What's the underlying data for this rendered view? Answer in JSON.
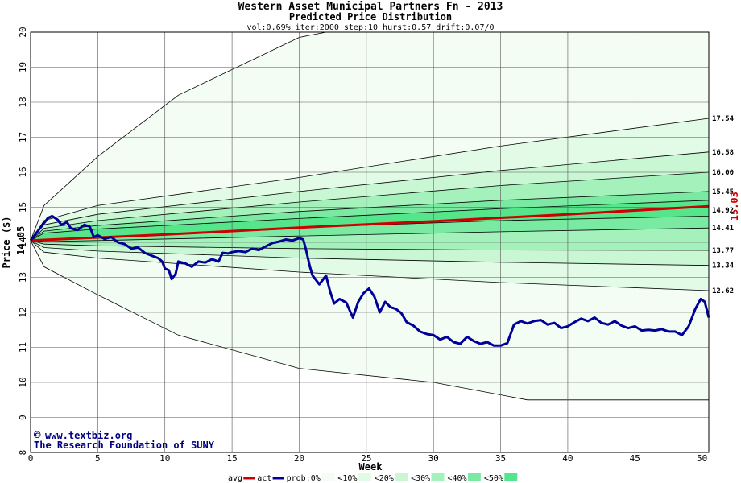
{
  "chart_data": {
    "type": "area",
    "title": "Western Asset Municipal Partners Fn - 2013",
    "subtitle": "Predicted Price Distribution",
    "params": "vol:0.69% iter:2000 step:10 hurst:0.57 drift:0.07/0",
    "xlabel": "Week",
    "ylabel": "Price ($)",
    "xlim": [
      0,
      50.5
    ],
    "ylim": [
      8,
      20
    ],
    "x_ticks": [
      0,
      5,
      10,
      15,
      20,
      25,
      30,
      35,
      40,
      45,
      50
    ],
    "y_ticks": [
      8,
      9,
      10,
      11,
      12,
      13,
      14,
      15,
      16,
      17,
      18,
      19,
      20
    ],
    "grid": true,
    "start_price_label": "14.05",
    "start_price": 14.05,
    "end_avg_label": "15.03",
    "end_avg": 15.03,
    "percentile_labels": [
      "17.54",
      "16.58",
      "16.00",
      "15.45",
      "14.92",
      "14.41",
      "13.77",
      "13.34",
      "12.62"
    ],
    "bands": [
      {
        "name": "0%",
        "upper": [
          [
            0,
            14.05
          ],
          [
            1,
            15.05
          ],
          [
            5,
            16.45
          ],
          [
            11,
            18.2
          ],
          [
            20,
            19.85
          ],
          [
            22,
            20.0
          ],
          [
            50.5,
            20.0
          ]
        ],
        "lower": [
          [
            0,
            14.05
          ],
          [
            1,
            13.3
          ],
          [
            5,
            12.5
          ],
          [
            11,
            11.35
          ],
          [
            20,
            10.4
          ],
          [
            30,
            10.0
          ],
          [
            37,
            9.5
          ],
          [
            50.5,
            9.5
          ]
        ],
        "color": "#f4fdf4"
      },
      {
        "name": "10%",
        "upper": [
          [
            0,
            14.05
          ],
          [
            1,
            14.62
          ],
          [
            5,
            15.05
          ],
          [
            20,
            15.85
          ],
          [
            35,
            16.75
          ],
          [
            50.5,
            17.54
          ]
        ],
        "lower": [
          [
            0,
            14.05
          ],
          [
            1,
            13.72
          ],
          [
            5,
            13.55
          ],
          [
            20,
            13.15
          ],
          [
            35,
            12.85
          ],
          [
            50.5,
            12.62
          ]
        ],
        "color": "#e2fbe6"
      },
      {
        "name": "20%",
        "upper": [
          [
            0,
            14.05
          ],
          [
            1,
            14.5
          ],
          [
            5,
            14.8
          ],
          [
            20,
            15.45
          ],
          [
            35,
            16.05
          ],
          [
            50.5,
            16.58
          ]
        ],
        "lower": [
          [
            0,
            14.05
          ],
          [
            1,
            13.85
          ],
          [
            5,
            13.75
          ],
          [
            20,
            13.55
          ],
          [
            35,
            13.43
          ],
          [
            50.5,
            13.34
          ]
        ],
        "color": "#c9f7d4"
      },
      {
        "name": "30%",
        "upper": [
          [
            0,
            14.05
          ],
          [
            1,
            14.4
          ],
          [
            5,
            14.62
          ],
          [
            20,
            15.15
          ],
          [
            35,
            15.62
          ],
          [
            50.5,
            16.0
          ]
        ],
        "lower": [
          [
            0,
            14.05
          ],
          [
            1,
            13.95
          ],
          [
            5,
            13.9
          ],
          [
            20,
            13.82
          ],
          [
            35,
            13.78
          ],
          [
            50.5,
            13.77
          ]
        ],
        "color": "#a4f1bc"
      },
      {
        "name": "40%",
        "upper": [
          [
            0,
            14.05
          ],
          [
            1,
            14.32
          ],
          [
            5,
            14.48
          ],
          [
            20,
            14.88
          ],
          [
            35,
            15.2
          ],
          [
            50.5,
            15.45
          ]
        ],
        "lower": [
          [
            0,
            14.05
          ],
          [
            1,
            14.02
          ],
          [
            5,
            14.05
          ],
          [
            20,
            14.18
          ],
          [
            35,
            14.3
          ],
          [
            50.5,
            14.41
          ]
        ],
        "color": "#7aeaa2"
      },
      {
        "name": "50%",
        "upper": [
          [
            0,
            14.05
          ],
          [
            1,
            14.26
          ],
          [
            5,
            14.38
          ],
          [
            20,
            14.68
          ],
          [
            35,
            14.96
          ],
          [
            50.5,
            15.2
          ]
        ],
        "lower": [
          [
            0,
            14.05
          ],
          [
            1,
            14.08
          ],
          [
            5,
            14.15
          ],
          [
            20,
            14.42
          ],
          [
            35,
            14.62
          ],
          [
            50.5,
            14.75
          ]
        ],
        "color": "#55e58a"
      }
    ],
    "avg": [
      [
        0,
        14.05
      ],
      [
        10,
        14.22
      ],
      [
        20,
        14.42
      ],
      [
        30,
        14.6
      ],
      [
        40,
        14.8
      ],
      [
        50.5,
        15.03
      ]
    ],
    "act": [
      [
        0,
        14.05
      ],
      [
        0.5,
        14.3
      ],
      [
        1,
        14.55
      ],
      [
        1.3,
        14.7
      ],
      [
        1.6,
        14.75
      ],
      [
        2,
        14.65
      ],
      [
        2.3,
        14.5
      ],
      [
        2.7,
        14.58
      ],
      [
        3,
        14.4
      ],
      [
        3.5,
        14.35
      ],
      [
        4,
        14.5
      ],
      [
        4.4,
        14.45
      ],
      [
        4.7,
        14.15
      ],
      [
        5,
        14.2
      ],
      [
        5.5,
        14.1
      ],
      [
        6,
        14.15
      ],
      [
        6.5,
        14.0
      ],
      [
        7,
        13.95
      ],
      [
        7.5,
        13.82
      ],
      [
        8,
        13.85
      ],
      [
        8.5,
        13.7
      ],
      [
        9,
        13.62
      ],
      [
        9.5,
        13.55
      ],
      [
        9.8,
        13.45
      ],
      [
        10,
        13.25
      ],
      [
        10.3,
        13.2
      ],
      [
        10.5,
        12.95
      ],
      [
        10.8,
        13.1
      ],
      [
        11,
        13.45
      ],
      [
        11.5,
        13.4
      ],
      [
        12,
        13.3
      ],
      [
        12.5,
        13.45
      ],
      [
        13,
        13.42
      ],
      [
        13.5,
        13.52
      ],
      [
        14,
        13.45
      ],
      [
        14.3,
        13.7
      ],
      [
        14.7,
        13.68
      ],
      [
        15,
        13.72
      ],
      [
        15.5,
        13.75
      ],
      [
        16,
        13.72
      ],
      [
        16.5,
        13.82
      ],
      [
        17,
        13.78
      ],
      [
        17.5,
        13.88
      ],
      [
        18,
        13.98
      ],
      [
        18.5,
        14.02
      ],
      [
        19,
        14.08
      ],
      [
        19.5,
        14.05
      ],
      [
        20,
        14.12
      ],
      [
        20.3,
        14.08
      ],
      [
        20.5,
        13.8
      ],
      [
        20.8,
        13.3
      ],
      [
        21,
        13.05
      ],
      [
        21.5,
        12.8
      ],
      [
        22,
        13.05
      ],
      [
        22.3,
        12.6
      ],
      [
        22.6,
        12.25
      ],
      [
        23,
        12.38
      ],
      [
        23.5,
        12.28
      ],
      [
        24,
        11.85
      ],
      [
        24.4,
        12.3
      ],
      [
        24.8,
        12.55
      ],
      [
        25.2,
        12.68
      ],
      [
        25.6,
        12.45
      ],
      [
        26,
        12.0
      ],
      [
        26.4,
        12.3
      ],
      [
        26.8,
        12.15
      ],
      [
        27.2,
        12.1
      ],
      [
        27.6,
        11.98
      ],
      [
        28,
        11.72
      ],
      [
        28.5,
        11.62
      ],
      [
        29,
        11.45
      ],
      [
        29.5,
        11.38
      ],
      [
        30,
        11.35
      ],
      [
        30.5,
        11.22
      ],
      [
        31,
        11.3
      ],
      [
        31.5,
        11.15
      ],
      [
        32,
        11.1
      ],
      [
        32.5,
        11.3
      ],
      [
        33,
        11.18
      ],
      [
        33.5,
        11.1
      ],
      [
        34,
        11.15
      ],
      [
        34.5,
        11.05
      ],
      [
        35,
        11.05
      ],
      [
        35.5,
        11.12
      ],
      [
        36,
        11.65
      ],
      [
        36.5,
        11.75
      ],
      [
        37,
        11.68
      ],
      [
        37.5,
        11.75
      ],
      [
        38,
        11.78
      ],
      [
        38.5,
        11.65
      ],
      [
        39,
        11.7
      ],
      [
        39.5,
        11.55
      ],
      [
        40,
        11.6
      ],
      [
        40.5,
        11.72
      ],
      [
        41,
        11.82
      ],
      [
        41.5,
        11.75
      ],
      [
        42,
        11.85
      ],
      [
        42.5,
        11.7
      ],
      [
        43,
        11.65
      ],
      [
        43.5,
        11.75
      ],
      [
        44,
        11.62
      ],
      [
        44.5,
        11.55
      ],
      [
        45,
        11.6
      ],
      [
        45.5,
        11.48
      ],
      [
        46,
        11.5
      ],
      [
        46.5,
        11.48
      ],
      [
        47,
        11.52
      ],
      [
        47.5,
        11.45
      ],
      [
        48,
        11.45
      ],
      [
        48.5,
        11.35
      ],
      [
        49,
        11.6
      ],
      [
        49.5,
        12.1
      ],
      [
        49.9,
        12.38
      ],
      [
        50.2,
        12.3
      ],
      [
        50.5,
        11.85
      ]
    ],
    "legend": {
      "items": [
        {
          "label": "avg",
          "type": "line",
          "color": "#cc0000"
        },
        {
          "label": "act",
          "type": "line",
          "color": "#000099"
        },
        {
          "label": "prob:0%",
          "type": "swatch",
          "color": "#f4fdf4"
        },
        {
          "label": "<10%",
          "type": "swatch",
          "color": "#e2fbe6"
        },
        {
          "label": "<20%",
          "type": "swatch",
          "color": "#c9f7d4"
        },
        {
          "label": "<30%",
          "type": "swatch",
          "color": "#a4f1bc"
        },
        {
          "label": "<40%",
          "type": "swatch",
          "color": "#7aeaa2"
        },
        {
          "label": "<50%",
          "type": "swatch",
          "color": "#55e58a"
        }
      ]
    },
    "colors": {
      "avg": "#cc0000",
      "act": "#000099",
      "grid": "#555555",
      "frame": "#000000"
    }
  },
  "watermark": {
    "copyright_symbol": "©",
    "line1": "www.textbiz.org",
    "line2": "The Research Foundation of SUNY"
  }
}
